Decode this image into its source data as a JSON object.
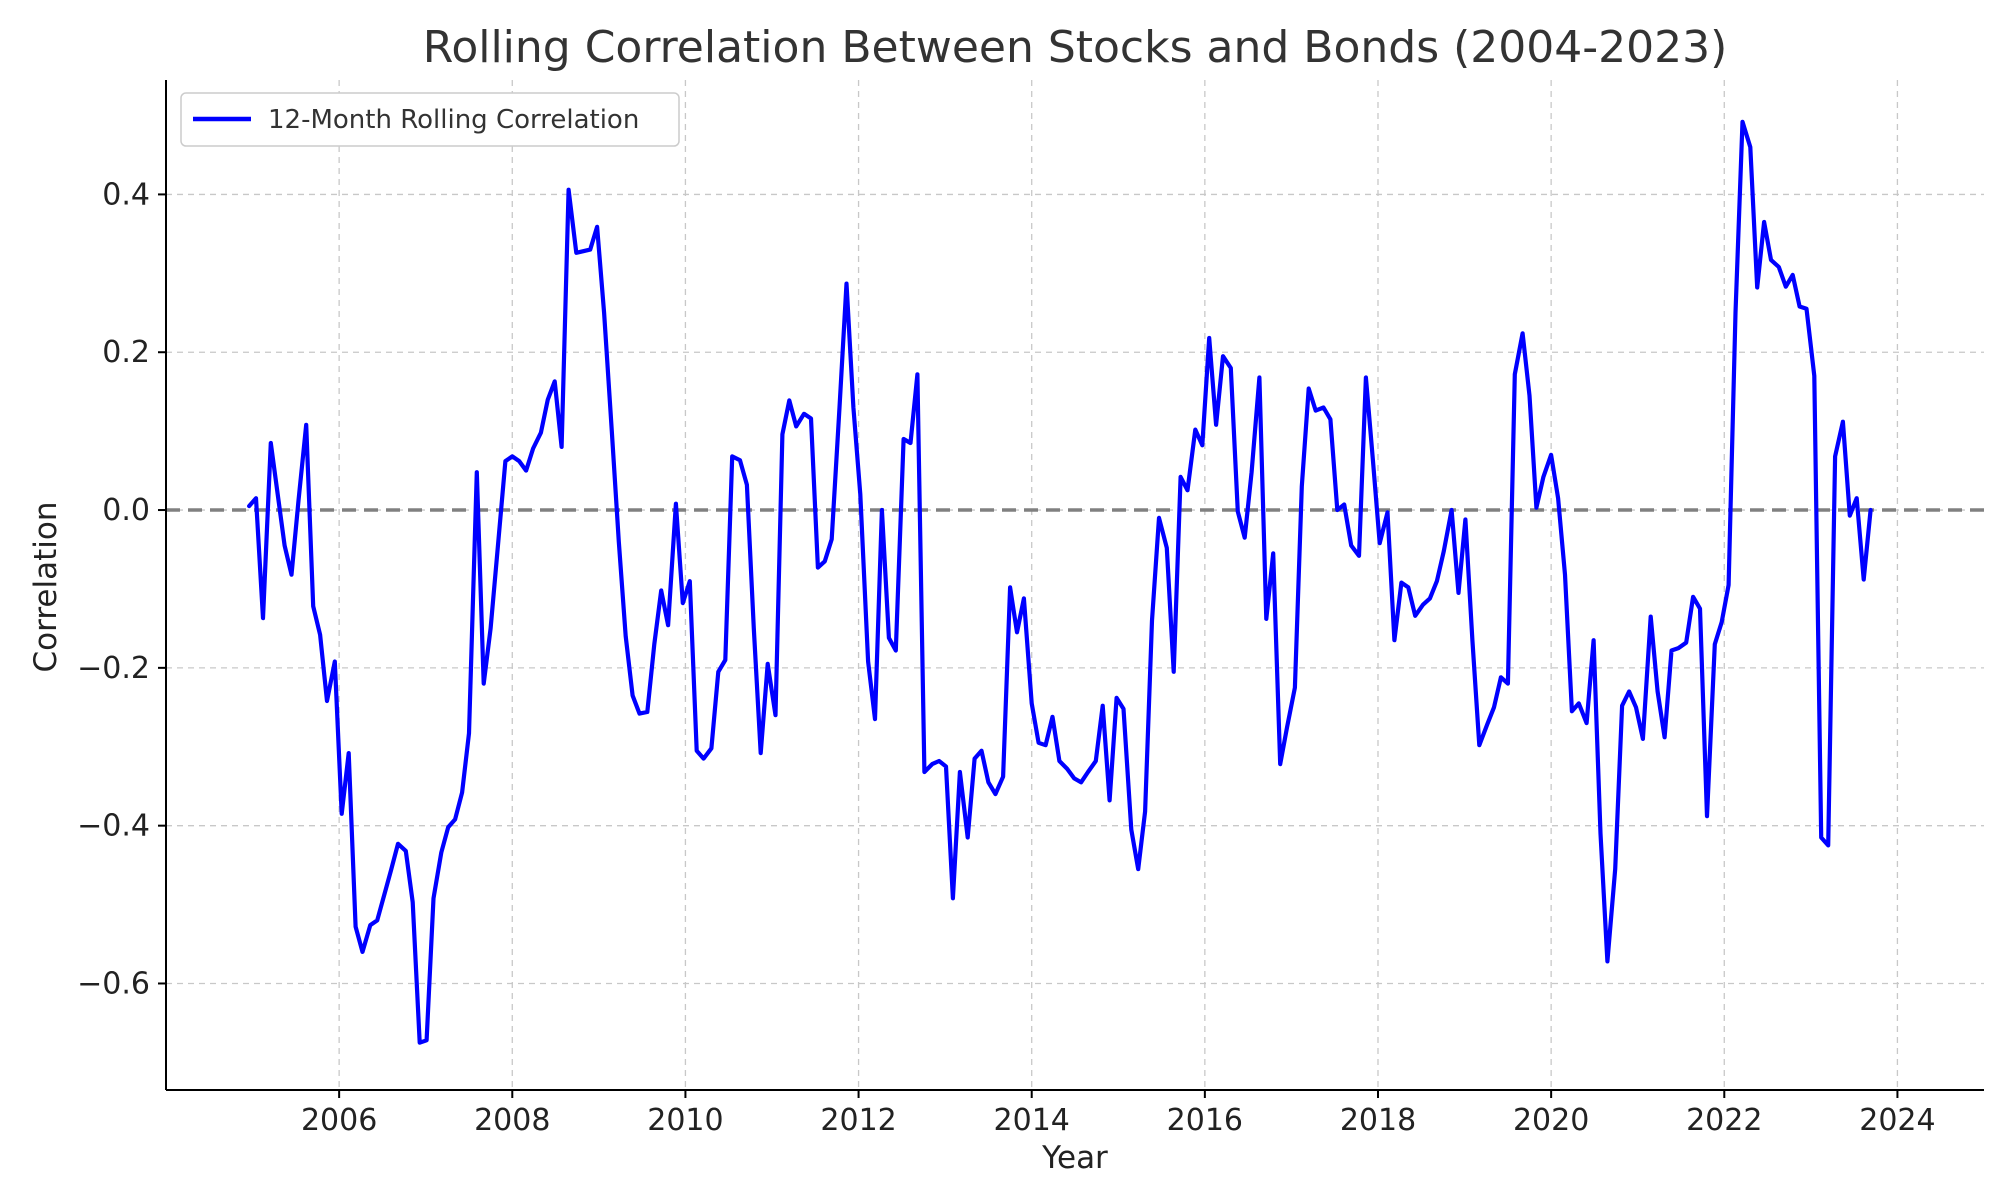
{
  "chart_data": {
    "type": "line",
    "title": "Rolling Correlation Between Stocks and Bonds (2004-2023)",
    "xlabel": "Year",
    "ylabel": "Correlation",
    "xlim": [
      2004.0,
      2025.0
    ],
    "ylim": [
      -0.735,
      0.545
    ],
    "x_ticks": [
      2006,
      2008,
      2010,
      2012,
      2014,
      2016,
      2018,
      2020,
      2022,
      2024
    ],
    "x_tick_labels": [
      "2006",
      "2008",
      "2010",
      "2012",
      "2014",
      "2016",
      "2018",
      "2020",
      "2022",
      "2024"
    ],
    "y_ticks": [
      -0.6,
      -0.4,
      -0.2,
      0.0,
      0.2,
      0.4
    ],
    "y_tick_labels": [
      "−0.6",
      "−0.4",
      "−0.2",
      "0.0",
      "0.2",
      "0.4"
    ],
    "grid": true,
    "legend_position": "top-left",
    "reference_line": {
      "y": 0.0,
      "style": "dashed",
      "color": "#808080"
    },
    "series": [
      {
        "name": "12-Month Rolling Correlation",
        "color": "#0000ff",
        "points": [
          [
            2004.96,
            0.005
          ],
          [
            2005.04,
            0.015
          ],
          [
            2005.12,
            -0.137
          ],
          [
            2005.21,
            0.085
          ],
          [
            2005.29,
            0.02
          ],
          [
            2005.37,
            -0.045
          ],
          [
            2005.45,
            -0.082
          ],
          [
            2005.53,
            0.012
          ],
          [
            2005.62,
            0.108
          ],
          [
            2005.7,
            -0.122
          ],
          [
            2005.78,
            -0.158
          ],
          [
            2005.86,
            -0.242
          ],
          [
            2005.95,
            -0.192
          ],
          [
            2006.03,
            -0.385
          ],
          [
            2006.11,
            -0.308
          ],
          [
            2006.19,
            -0.528
          ],
          [
            2006.27,
            -0.56
          ],
          [
            2006.36,
            -0.526
          ],
          [
            2006.44,
            -0.52
          ],
          [
            2006.52,
            -0.488
          ],
          [
            2006.6,
            -0.456
          ],
          [
            2006.68,
            -0.423
          ],
          [
            2006.77,
            -0.432
          ],
          [
            2006.85,
            -0.497
          ],
          [
            2006.93,
            -0.675
          ],
          [
            2007.01,
            -0.672
          ],
          [
            2007.09,
            -0.492
          ],
          [
            2007.18,
            -0.434
          ],
          [
            2007.26,
            -0.402
          ],
          [
            2007.34,
            -0.392
          ],
          [
            2007.42,
            -0.358
          ],
          [
            2007.5,
            -0.283
          ],
          [
            2007.59,
            0.048
          ],
          [
            2007.67,
            -0.22
          ],
          [
            2007.75,
            -0.15
          ],
          [
            2007.83,
            -0.05
          ],
          [
            2007.92,
            0.062
          ],
          [
            2008.0,
            0.068
          ],
          [
            2008.08,
            0.062
          ],
          [
            2008.16,
            0.05
          ],
          [
            2008.24,
            0.078
          ],
          [
            2008.33,
            0.098
          ],
          [
            2008.41,
            0.14
          ],
          [
            2008.49,
            0.163
          ],
          [
            2008.57,
            0.08
          ],
          [
            2008.65,
            0.406
          ],
          [
            2008.74,
            0.326
          ],
          [
            2008.82,
            0.328
          ],
          [
            2008.9,
            0.33
          ],
          [
            2008.98,
            0.359
          ],
          [
            2009.06,
            0.25
          ],
          [
            2009.15,
            0.1
          ],
          [
            2009.23,
            -0.04
          ],
          [
            2009.31,
            -0.16
          ],
          [
            2009.39,
            -0.235
          ],
          [
            2009.47,
            -0.258
          ],
          [
            2009.56,
            -0.256
          ],
          [
            2009.64,
            -0.17
          ],
          [
            2009.72,
            -0.102
          ],
          [
            2009.8,
            -0.146
          ],
          [
            2009.89,
            0.008
          ],
          [
            2009.97,
            -0.118
          ],
          [
            2010.05,
            -0.09
          ],
          [
            2010.13,
            -0.305
          ],
          [
            2010.21,
            -0.315
          ],
          [
            2010.3,
            -0.302
          ],
          [
            2010.38,
            -0.205
          ],
          [
            2010.46,
            -0.19
          ],
          [
            2010.54,
            0.068
          ],
          [
            2010.63,
            0.063
          ],
          [
            2010.71,
            0.032
          ],
          [
            2010.79,
            -0.15
          ],
          [
            2010.87,
            -0.308
          ],
          [
            2010.95,
            -0.195
          ],
          [
            2011.04,
            -0.26
          ],
          [
            2011.12,
            0.096
          ],
          [
            2011.2,
            0.139
          ],
          [
            2011.28,
            0.106
          ],
          [
            2011.37,
            0.122
          ],
          [
            2011.45,
            0.116
          ],
          [
            2011.53,
            -0.073
          ],
          [
            2011.61,
            -0.065
          ],
          [
            2011.69,
            -0.037
          ],
          [
            2011.78,
            0.13
          ],
          [
            2011.86,
            0.287
          ],
          [
            2011.94,
            0.13
          ],
          [
            2012.02,
            0.02
          ],
          [
            2012.11,
            -0.192
          ],
          [
            2012.19,
            -0.265
          ],
          [
            2012.27,
            0.0
          ],
          [
            2012.35,
            -0.162
          ],
          [
            2012.43,
            -0.178
          ],
          [
            2012.52,
            0.09
          ],
          [
            2012.6,
            0.085
          ],
          [
            2012.68,
            0.172
          ],
          [
            2012.76,
            -0.332
          ],
          [
            2012.85,
            -0.322
          ],
          [
            2012.93,
            -0.318
          ],
          [
            2013.01,
            -0.325
          ],
          [
            2013.09,
            -0.492
          ],
          [
            2013.17,
            -0.332
          ],
          [
            2013.26,
            -0.415
          ],
          [
            2013.34,
            -0.315
          ],
          [
            2013.42,
            -0.305
          ],
          [
            2013.5,
            -0.345
          ],
          [
            2013.58,
            -0.36
          ],
          [
            2013.67,
            -0.338
          ],
          [
            2013.75,
            -0.098
          ],
          [
            2013.83,
            -0.155
          ],
          [
            2013.91,
            -0.112
          ],
          [
            2014.0,
            -0.245
          ],
          [
            2014.08,
            -0.295
          ],
          [
            2014.16,
            -0.298
          ],
          [
            2014.24,
            -0.262
          ],
          [
            2014.32,
            -0.318
          ],
          [
            2014.41,
            -0.328
          ],
          [
            2014.49,
            -0.34
          ],
          [
            2014.57,
            -0.345
          ],
          [
            2014.65,
            -0.332
          ],
          [
            2014.74,
            -0.318
          ],
          [
            2014.82,
            -0.248
          ],
          [
            2014.9,
            -0.368
          ],
          [
            2014.98,
            -0.238
          ],
          [
            2015.06,
            -0.252
          ],
          [
            2015.15,
            -0.405
          ],
          [
            2015.23,
            -0.455
          ],
          [
            2015.31,
            -0.382
          ],
          [
            2015.39,
            -0.14
          ],
          [
            2015.47,
            -0.01
          ],
          [
            2015.56,
            -0.048
          ],
          [
            2015.64,
            -0.205
          ],
          [
            2015.72,
            0.042
          ],
          [
            2015.8,
            0.025
          ],
          [
            2015.89,
            0.102
          ],
          [
            2015.97,
            0.082
          ],
          [
            2016.05,
            0.218
          ],
          [
            2016.13,
            0.108
          ],
          [
            2016.21,
            0.195
          ],
          [
            2016.3,
            0.18
          ],
          [
            2016.38,
            -0.002
          ],
          [
            2016.46,
            -0.035
          ],
          [
            2016.54,
            0.048
          ],
          [
            2016.63,
            0.168
          ],
          [
            2016.71,
            -0.138
          ],
          [
            2016.79,
            -0.055
          ],
          [
            2016.87,
            -0.322
          ],
          [
            2016.95,
            -0.275
          ],
          [
            2017.04,
            -0.225
          ],
          [
            2017.12,
            0.03
          ],
          [
            2017.2,
            0.154
          ],
          [
            2017.28,
            0.126
          ],
          [
            2017.37,
            0.13
          ],
          [
            2017.45,
            0.115
          ],
          [
            2017.53,
            0.0
          ],
          [
            2017.61,
            0.007
          ],
          [
            2017.69,
            -0.045
          ],
          [
            2017.78,
            -0.058
          ],
          [
            2017.86,
            0.168
          ],
          [
            2017.94,
            0.065
          ],
          [
            2018.02,
            -0.042
          ],
          [
            2018.11,
            -0.003
          ],
          [
            2018.19,
            -0.165
          ],
          [
            2018.27,
            -0.092
          ],
          [
            2018.35,
            -0.098
          ],
          [
            2018.43,
            -0.134
          ],
          [
            2018.52,
            -0.12
          ],
          [
            2018.6,
            -0.112
          ],
          [
            2018.68,
            -0.09
          ],
          [
            2018.76,
            -0.052
          ],
          [
            2018.85,
            0.0
          ],
          [
            2018.93,
            -0.105
          ],
          [
            2019.01,
            -0.012
          ],
          [
            2019.09,
            -0.165
          ],
          [
            2019.17,
            -0.298
          ],
          [
            2019.26,
            -0.272
          ],
          [
            2019.34,
            -0.25
          ],
          [
            2019.42,
            -0.212
          ],
          [
            2019.5,
            -0.22
          ],
          [
            2019.58,
            0.172
          ],
          [
            2019.67,
            0.224
          ],
          [
            2019.75,
            0.145
          ],
          [
            2019.83,
            0.003
          ],
          [
            2019.91,
            0.042
          ],
          [
            2020.0,
            0.07
          ],
          [
            2020.08,
            0.015
          ],
          [
            2020.16,
            -0.082
          ],
          [
            2020.24,
            -0.255
          ],
          [
            2020.32,
            -0.245
          ],
          [
            2020.41,
            -0.27
          ],
          [
            2020.49,
            -0.165
          ],
          [
            2020.57,
            -0.41
          ],
          [
            2020.65,
            -0.572
          ],
          [
            2020.74,
            -0.455
          ],
          [
            2020.82,
            -0.248
          ],
          [
            2020.9,
            -0.23
          ],
          [
            2020.98,
            -0.25
          ],
          [
            2021.06,
            -0.29
          ],
          [
            2021.15,
            -0.135
          ],
          [
            2021.23,
            -0.23
          ],
          [
            2021.31,
            -0.288
          ],
          [
            2021.39,
            -0.178
          ],
          [
            2021.47,
            -0.175
          ],
          [
            2021.56,
            -0.168
          ],
          [
            2021.64,
            -0.11
          ],
          [
            2021.72,
            -0.125
          ],
          [
            2021.8,
            -0.388
          ],
          [
            2021.89,
            -0.17
          ],
          [
            2021.97,
            -0.142
          ],
          [
            2022.05,
            -0.095
          ],
          [
            2022.13,
            0.25
          ],
          [
            2022.21,
            0.492
          ],
          [
            2022.3,
            0.46
          ],
          [
            2022.38,
            0.282
          ],
          [
            2022.46,
            0.365
          ],
          [
            2022.54,
            0.317
          ],
          [
            2022.63,
            0.308
          ],
          [
            2022.71,
            0.283
          ],
          [
            2022.79,
            0.298
          ],
          [
            2022.87,
            0.258
          ],
          [
            2022.95,
            0.255
          ],
          [
            2023.04,
            0.17
          ],
          [
            2023.12,
            -0.415
          ],
          [
            2023.2,
            -0.425
          ],
          [
            2023.28,
            0.068
          ],
          [
            2023.37,
            0.112
          ],
          [
            2023.45,
            -0.007
          ],
          [
            2023.53,
            0.015
          ],
          [
            2023.61,
            -0.088
          ],
          [
            2023.69,
            0.0
          ]
        ]
      }
    ]
  }
}
